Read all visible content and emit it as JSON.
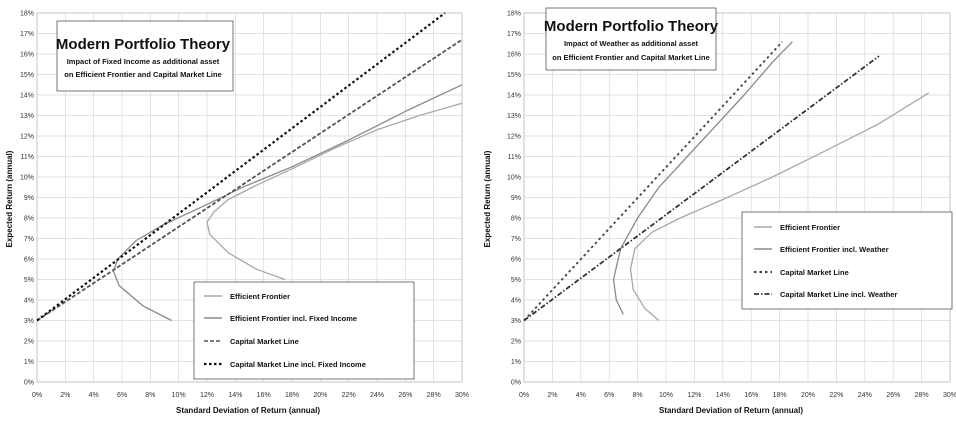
{
  "chart_data": [
    {
      "type": "line",
      "title": "Modern Portfolio Theory",
      "subtitle_lines": [
        "Impact of Fixed Income as additional asset",
        "on Efficient Frontier and Capital Market Line"
      ],
      "xlabel": "Standard Deviation of Return (annual)",
      "ylabel": "Expected Return (annual)",
      "x_ticks": [
        "0%",
        "2%",
        "4%",
        "6%",
        "8%",
        "10%",
        "12%",
        "14%",
        "16%",
        "18%",
        "20%",
        "22%",
        "24%",
        "26%",
        "28%",
        "30%"
      ],
      "y_ticks": [
        "0%",
        "1%",
        "2%",
        "3%",
        "4%",
        "5%",
        "6%",
        "7%",
        "8%",
        "9%",
        "10%",
        "11%",
        "12%",
        "13%",
        "14%",
        "15%",
        "16%",
        "17%",
        "18%"
      ],
      "xlim": [
        0,
        30
      ],
      "ylim": [
        0,
        18
      ],
      "grid": true,
      "legend_position": "bottom-right",
      "series": [
        {
          "name": "Efficient Frontier",
          "style": "solid",
          "color": "#a8a8a8",
          "x": [
            17.5,
            15.5,
            13.5,
            12.2,
            12.0,
            12.5,
            13.5,
            15.5,
            18.0,
            21.0,
            24.0,
            27.0,
            30.0
          ],
          "y": [
            5.0,
            5.5,
            6.3,
            7.2,
            7.8,
            8.3,
            8.9,
            9.6,
            10.4,
            11.4,
            12.3,
            13.0,
            13.6
          ]
        },
        {
          "name": "Efficient Frontier incl. Fixed Income",
          "style": "solid",
          "color": "#8a8a8a",
          "x": [
            9.5,
            7.5,
            5.8,
            5.4,
            5.7,
            7.0,
            9.0,
            11.5,
            14.5,
            18.0,
            22.0,
            26.0,
            30.0
          ],
          "y": [
            3.0,
            3.7,
            4.7,
            5.4,
            6.0,
            6.9,
            7.7,
            8.5,
            9.5,
            10.5,
            11.8,
            13.2,
            14.5
          ]
        },
        {
          "name": "Capital Market Line",
          "style": "dashed",
          "color": "#555555",
          "x": [
            0,
            30
          ],
          "y": [
            3.0,
            16.7
          ]
        },
        {
          "name": "Capital Market Line incl. Fixed Income",
          "style": "dotted",
          "color": "#111111",
          "x": [
            0,
            28.8
          ],
          "y": [
            3.0,
            18.0
          ]
        }
      ]
    },
    {
      "type": "line",
      "title": "Modern Portfolio Theory",
      "subtitle_lines": [
        "Impact of Weather as additional asset",
        "on Efficient Frontier and Capital Market Line"
      ],
      "xlabel": "Standard Deviation of Return (annual)",
      "ylabel": "Expected Return (annual)",
      "x_ticks": [
        "0%",
        "2%",
        "4%",
        "6%",
        "8%",
        "10%",
        "12%",
        "14%",
        "16%",
        "18%",
        "20%",
        "22%",
        "24%",
        "26%",
        "28%",
        "30%"
      ],
      "y_ticks": [
        "0%",
        "1%",
        "2%",
        "3%",
        "4%",
        "5%",
        "6%",
        "7%",
        "8%",
        "9%",
        "10%",
        "11%",
        "12%",
        "13%",
        "14%",
        "15%",
        "16%",
        "17%",
        "18%"
      ],
      "xlim": [
        0,
        30
      ],
      "ylim": [
        0,
        18
      ],
      "grid": true,
      "legend_position": "right",
      "series": [
        {
          "name": "Efficient Frontier",
          "style": "solid",
          "color": "#a8a8a8",
          "x": [
            9.5,
            8.5,
            7.7,
            7.5,
            7.8,
            9.0,
            11.0,
            14.0,
            17.5,
            21.0,
            25.0,
            28.5
          ],
          "y": [
            3.0,
            3.6,
            4.5,
            5.5,
            6.5,
            7.3,
            8.0,
            8.9,
            10.0,
            11.2,
            12.6,
            14.1
          ]
        },
        {
          "name": "Efficient Frontier incl. Weather",
          "style": "solid",
          "color": "#8a8a8a",
          "x": [
            7.0,
            6.5,
            6.3,
            6.8,
            8.0,
            9.5,
            11.5,
            13.5,
            15.5,
            17.5,
            18.9
          ],
          "y": [
            3.3,
            4.0,
            5.0,
            6.5,
            8.0,
            9.5,
            11.0,
            12.5,
            14.0,
            15.6,
            16.6
          ]
        },
        {
          "name": "Capital Market Line",
          "style": "dashed",
          "color": "#444444",
          "x": [
            0,
            18.2
          ],
          "y": [
            3.0,
            16.6
          ]
        },
        {
          "name": "Capital Market Line incl. Weather",
          "style": "dotted",
          "color": "#333333",
          "x": [
            0,
            25.0
          ],
          "y": [
            3.0,
            15.9
          ]
        }
      ]
    }
  ]
}
